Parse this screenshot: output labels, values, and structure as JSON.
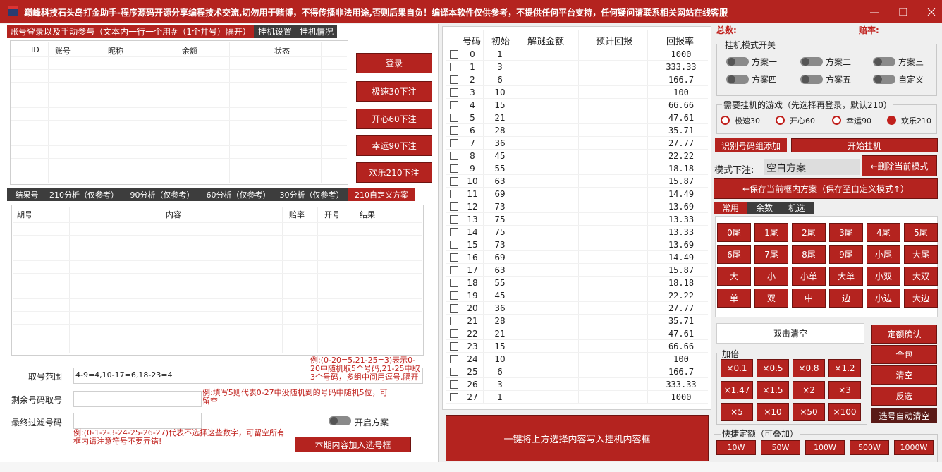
{
  "title": "巅峰科技石头岛打金助手-程序源码开源分享编程技术交流,切勿用于赌博，不得传播非法用途,否则后果自负！编译本软件仅供参考，不提供任何平台支持，任何疑问请联系相关网站在线客服",
  "top_tabs": [
    "账号登录以及手动参与（文本内一行一个用#（1个井号）隔开）",
    "挂机设置",
    "挂机情况"
  ],
  "account_table": {
    "headers": [
      "ID",
      "账号",
      "昵称",
      "余额",
      "状态"
    ]
  },
  "login_buttons": [
    "登录",
    "极速30下注",
    "开心60下注",
    "幸运90下注",
    "欢乐210下注"
  ],
  "analysis_tabs": [
    "结果号",
    "210分析（仅参考）",
    "90分析（仅参考）",
    "60分析（仅参考）",
    "30分析（仅参考）",
    "210自定义方案"
  ],
  "result_table": {
    "headers": [
      "期号",
      "内容",
      "赔率",
      "开号",
      "结果"
    ]
  },
  "form": {
    "labels": [
      "取号范围",
      "剩余号码取号",
      "最终过滤号码"
    ],
    "range_value": "4-9=4,10-17=6,18-23=4",
    "hints": [
      "例:(0-20=5,21-25=3)表示0-20中随机取5个号码,21-25中取3个号码，多组中间用逗号,隔开",
      "例:填写5则代表0-27中没随机到的号码中随机5位，可留空",
      "例:(0-1-2-3-24-25-26-27)代表不选择这些数字，可留空所有框内请注意符号不要弄错!"
    ],
    "toggle": "开启方案",
    "add_button": "本期内容加入选号框"
  },
  "number_table": {
    "headers": [
      "号码",
      "初始",
      "解谜金额",
      "预计回报",
      "回报率"
    ],
    "rows": [
      [
        0,
        1,
        1000
      ],
      [
        1,
        3,
        333.33
      ],
      [
        2,
        6,
        166.7
      ],
      [
        3,
        10,
        100
      ],
      [
        4,
        15,
        66.66
      ],
      [
        5,
        21,
        47.61
      ],
      [
        6,
        28,
        35.71
      ],
      [
        7,
        36,
        27.77
      ],
      [
        8,
        45,
        22.22
      ],
      [
        9,
        55,
        18.18
      ],
      [
        10,
        63,
        15.87
      ],
      [
        11,
        69,
        14.49
      ],
      [
        12,
        73,
        13.69
      ],
      [
        13,
        75,
        13.33
      ],
      [
        14,
        75,
        13.33
      ],
      [
        15,
        73,
        13.69
      ],
      [
        16,
        69,
        14.49
      ],
      [
        17,
        63,
        15.87
      ],
      [
        18,
        55,
        18.18
      ],
      [
        19,
        45,
        22.22
      ],
      [
        20,
        36,
        27.77
      ],
      [
        21,
        28,
        35.71
      ],
      [
        22,
        21,
        47.61
      ],
      [
        23,
        15,
        66.66
      ],
      [
        24,
        10,
        100
      ],
      [
        25,
        6,
        166.7
      ],
      [
        26,
        3,
        333.33
      ],
      [
        27,
        1,
        1000
      ]
    ]
  },
  "write_button": "一键将上方选择内容写入挂机内容框",
  "right": {
    "total": "总数:",
    "odds": "赔率:",
    "mode_group": "挂机模式开关",
    "modes": [
      "方案一",
      "方案二",
      "方案三",
      "方案四",
      "方案五",
      "自定义"
    ],
    "game_group": "需要挂机的游戏（先选择再登录，默认210）",
    "games": [
      "极速30",
      "开心60",
      "幸运90",
      "欢乐210"
    ],
    "identify": "识别号码组添加",
    "start": "开始挂机",
    "mode_bet": "模式下注:",
    "combo": "空白方案",
    "delete_mode": "←删除当前模式",
    "save": "←保存当前框内方案（保存至自定义模式↑）",
    "tabs": [
      "常用",
      "余数",
      "机选"
    ],
    "grid": [
      "0尾",
      "1尾",
      "2尾",
      "3尾",
      "4尾",
      "5尾",
      "6尾",
      "7尾",
      "8尾",
      "9尾",
      "小尾",
      "大尾",
      "大",
      "小",
      "小单",
      "大单",
      "小双",
      "大双",
      "单",
      "双",
      "中",
      "边",
      "小边",
      "大边"
    ],
    "clear_box": "双击清空",
    "side_buttons": [
      "定额确认",
      "全包",
      "清空",
      "反选",
      "选号自动清空"
    ],
    "multiply_group": "加倍",
    "multipliers": [
      "×0.1",
      "×0.5",
      "×0.8",
      "×1.2",
      "×1.47",
      "×1.5",
      "×2",
      "×3",
      "×5",
      "×10",
      "×50",
      "×100"
    ],
    "quick_group": "快捷定额（可叠加）",
    "amounts": [
      "10W",
      "50W",
      "100W",
      "500W",
      "1000W"
    ]
  }
}
